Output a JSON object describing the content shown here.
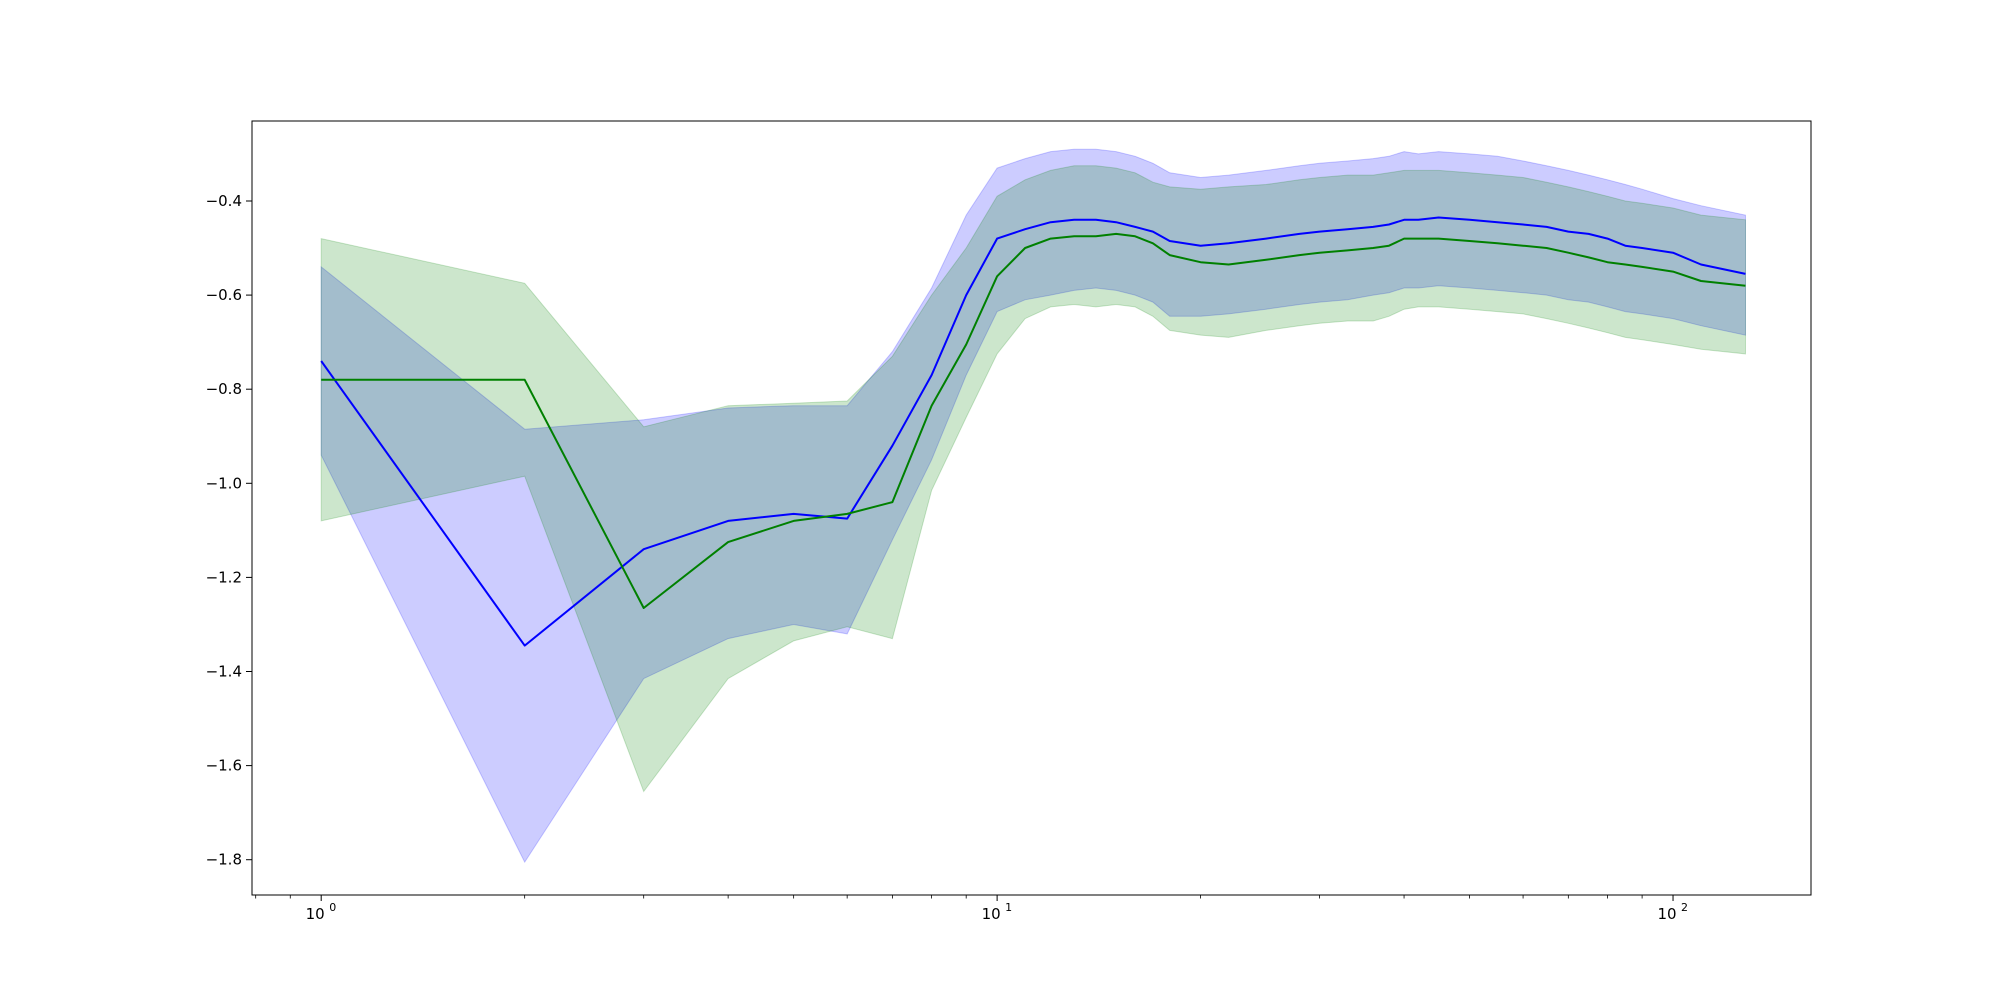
{
  "chart_data": {
    "type": "line",
    "title": "",
    "xlabel": "",
    "ylabel": "",
    "x_scale": "log",
    "xlim": [
      0.79,
      160
    ],
    "ylim": [
      -1.875,
      -0.23
    ],
    "x_ticks": [
      {
        "value": 1,
        "base": "10",
        "exp": "0"
      },
      {
        "value": 10,
        "base": "10",
        "exp": "1"
      },
      {
        "value": 100,
        "base": "10",
        "exp": "2"
      }
    ],
    "y_ticks": [
      {
        "value": -0.4,
        "label": "−0.4"
      },
      {
        "value": -0.6,
        "label": "−0.6"
      },
      {
        "value": -0.8,
        "label": "−0.8"
      },
      {
        "value": -1.0,
        "label": "−1.0"
      },
      {
        "value": -1.2,
        "label": "−1.2"
      },
      {
        "value": -1.4,
        "label": "−1.4"
      },
      {
        "value": -1.6,
        "label": "−1.6"
      },
      {
        "value": -1.8,
        "label": "−1.8"
      }
    ],
    "grid": false,
    "legend": "none",
    "series": [
      {
        "color": "#0000ff",
        "band_color": "#0000ff",
        "band_opacity": 0.2,
        "x": [
          1,
          2,
          3,
          4,
          5,
          6,
          7,
          8,
          9,
          10,
          11,
          12,
          13,
          14,
          15,
          16,
          17,
          18,
          20,
          22,
          25,
          28,
          30,
          33,
          36,
          38,
          40,
          42,
          45,
          50,
          55,
          60,
          65,
          70,
          75,
          80,
          85,
          90,
          100,
          110,
          128
        ],
        "y": [
          -0.74,
          -1.345,
          -1.14,
          -1.08,
          -1.065,
          -1.075,
          -0.92,
          -0.77,
          -0.6,
          -0.48,
          -0.46,
          -0.445,
          -0.44,
          -0.44,
          -0.445,
          -0.455,
          -0.465,
          -0.485,
          -0.495,
          -0.49,
          -0.48,
          -0.47,
          -0.465,
          -0.46,
          -0.455,
          -0.45,
          -0.44,
          -0.44,
          -0.435,
          -0.44,
          -0.445,
          -0.45,
          -0.455,
          -0.465,
          -0.47,
          -0.48,
          -0.495,
          -0.5,
          -0.51,
          -0.535,
          -0.555
        ],
        "upper": [
          -0.54,
          -0.885,
          -0.865,
          -0.84,
          -0.835,
          -0.835,
          -0.72,
          -0.585,
          -0.43,
          -0.33,
          -0.31,
          -0.295,
          -0.29,
          -0.29,
          -0.295,
          -0.305,
          -0.32,
          -0.34,
          -0.35,
          -0.345,
          -0.335,
          -0.325,
          -0.32,
          -0.315,
          -0.31,
          -0.305,
          -0.295,
          -0.3,
          -0.295,
          -0.3,
          -0.305,
          -0.315,
          -0.325,
          -0.335,
          -0.345,
          -0.355,
          -0.365,
          -0.375,
          -0.395,
          -0.41,
          -0.43
        ],
        "lower": [
          -0.94,
          -1.805,
          -1.415,
          -1.33,
          -1.3,
          -1.32,
          -1.12,
          -0.95,
          -0.77,
          -0.635,
          -0.61,
          -0.6,
          -0.59,
          -0.585,
          -0.59,
          -0.6,
          -0.615,
          -0.645,
          -0.645,
          -0.64,
          -0.63,
          -0.62,
          -0.615,
          -0.61,
          -0.6,
          -0.595,
          -0.585,
          -0.585,
          -0.58,
          -0.585,
          -0.59,
          -0.595,
          -0.6,
          -0.61,
          -0.615,
          -0.625,
          -0.635,
          -0.64,
          -0.65,
          -0.665,
          -0.685
        ]
      },
      {
        "color": "#008000",
        "band_color": "#008000",
        "band_opacity": 0.2,
        "x": [
          1,
          2,
          3,
          4,
          5,
          6,
          7,
          8,
          9,
          10,
          11,
          12,
          13,
          14,
          15,
          16,
          17,
          18,
          20,
          22,
          25,
          28,
          30,
          33,
          36,
          38,
          40,
          42,
          45,
          50,
          55,
          60,
          65,
          70,
          75,
          80,
          85,
          90,
          100,
          110,
          128
        ],
        "y": [
          -0.78,
          -0.78,
          -1.265,
          -1.125,
          -1.08,
          -1.065,
          -1.04,
          -0.835,
          -0.705,
          -0.56,
          -0.5,
          -0.48,
          -0.475,
          -0.475,
          -0.47,
          -0.475,
          -0.49,
          -0.515,
          -0.53,
          -0.535,
          -0.525,
          -0.515,
          -0.51,
          -0.505,
          -0.5,
          -0.495,
          -0.48,
          -0.48,
          -0.48,
          -0.485,
          -0.49,
          -0.495,
          -0.5,
          -0.51,
          -0.52,
          -0.53,
          -0.535,
          -0.54,
          -0.55,
          -0.57,
          -0.58
        ],
        "upper": [
          -0.48,
          -0.575,
          -0.88,
          -0.835,
          -0.83,
          -0.825,
          -0.73,
          -0.6,
          -0.5,
          -0.39,
          -0.355,
          -0.335,
          -0.325,
          -0.325,
          -0.33,
          -0.34,
          -0.36,
          -0.37,
          -0.375,
          -0.37,
          -0.365,
          -0.355,
          -0.35,
          -0.345,
          -0.345,
          -0.34,
          -0.335,
          -0.335,
          -0.335,
          -0.34,
          -0.345,
          -0.35,
          -0.36,
          -0.37,
          -0.38,
          -0.39,
          -0.4,
          -0.405,
          -0.415,
          -0.43,
          -0.44
        ],
        "lower": [
          -1.08,
          -0.985,
          -1.655,
          -1.415,
          -1.335,
          -1.305,
          -1.33,
          -1.015,
          -0.86,
          -0.725,
          -0.65,
          -0.625,
          -0.62,
          -0.625,
          -0.62,
          -0.625,
          -0.645,
          -0.675,
          -0.685,
          -0.69,
          -0.675,
          -0.665,
          -0.66,
          -0.655,
          -0.655,
          -0.645,
          -0.63,
          -0.625,
          -0.625,
          -0.63,
          -0.635,
          -0.64,
          -0.65,
          -0.66,
          -0.67,
          -0.68,
          -0.69,
          -0.695,
          -0.705,
          -0.715,
          -0.725
        ]
      }
    ]
  }
}
